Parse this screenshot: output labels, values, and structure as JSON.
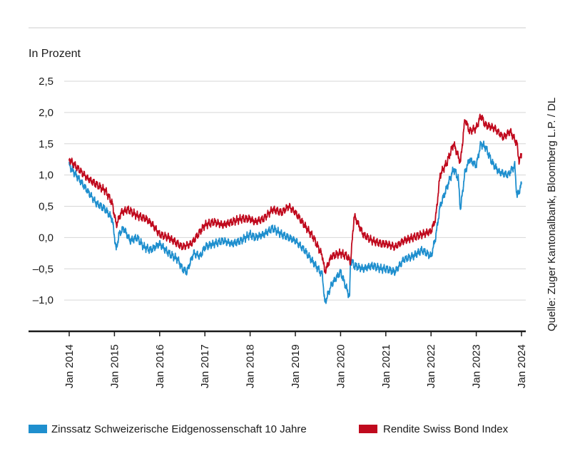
{
  "chart_data": {
    "type": "line",
    "ylabel": "In Prozent",
    "source": "Quelle: Zuger Kantonalbank, Bloomberg L.P. / DL",
    "ylim": [
      -1.5,
      2.5
    ],
    "yticks": [
      2.5,
      2.0,
      1.5,
      1.0,
      0.5,
      0.0,
      -0.5,
      -1.0
    ],
    "ytick_labels": [
      "2,5",
      "2,0",
      "1,5",
      "1,0",
      "0,5",
      "0,0",
      "–0,5",
      "–1,0"
    ],
    "xlim": [
      2014.0,
      2024.0
    ],
    "xticks": [
      2014,
      2015,
      2016,
      2017,
      2018,
      2019,
      2020,
      2021,
      2022,
      2023,
      2024
    ],
    "xtick_labels": [
      "Jan 2014",
      "Jan 2015",
      "Jan 2016",
      "Jan 2017",
      "Jan 2018",
      "Jan 2019",
      "Jan 2020",
      "Jan 2021",
      "Jan 2022",
      "Jan 2023",
      "Jan 2024"
    ],
    "grid": true,
    "legend_position": "bottom",
    "series": [
      {
        "name": "Zinssatz Schweizerische Eidgenossenschaft 10 Jahre",
        "color": "#1f8fce",
        "x": [
          2014.0,
          2014.2,
          2014.4,
          2014.6,
          2014.8,
          2014.95,
          2015.04,
          2015.1,
          2015.2,
          2015.35,
          2015.5,
          2015.65,
          2015.8,
          2016.0,
          2016.2,
          2016.4,
          2016.5,
          2016.6,
          2016.75,
          2016.9,
          2017.0,
          2017.2,
          2017.4,
          2017.6,
          2017.8,
          2018.0,
          2018.1,
          2018.3,
          2018.5,
          2018.7,
          2018.85,
          2019.0,
          2019.2,
          2019.4,
          2019.6,
          2019.65,
          2019.8,
          2020.0,
          2020.1,
          2020.2,
          2020.22,
          2020.3,
          2020.5,
          2020.7,
          2020.9,
          2021.0,
          2021.2,
          2021.4,
          2021.6,
          2021.8,
          2022.0,
          2022.1,
          2022.2,
          2022.35,
          2022.5,
          2022.6,
          2022.65,
          2022.75,
          2022.85,
          2023.0,
          2023.1,
          2023.2,
          2023.35,
          2023.5,
          2023.7,
          2023.85,
          2023.9,
          2024.0
        ],
        "y": [
          1.15,
          0.95,
          0.75,
          0.55,
          0.45,
          0.3,
          -0.2,
          0.05,
          0.15,
          -0.05,
          0.0,
          -0.15,
          -0.2,
          -0.1,
          -0.25,
          -0.35,
          -0.5,
          -0.55,
          -0.25,
          -0.3,
          -0.15,
          -0.1,
          -0.05,
          -0.1,
          -0.05,
          0.05,
          0.0,
          0.05,
          0.15,
          0.05,
          0.0,
          -0.05,
          -0.2,
          -0.4,
          -0.6,
          -1.05,
          -0.75,
          -0.55,
          -0.75,
          -0.95,
          -0.35,
          -0.45,
          -0.5,
          -0.45,
          -0.5,
          -0.5,
          -0.55,
          -0.35,
          -0.3,
          -0.2,
          -0.3,
          0.0,
          0.5,
          0.8,
          1.1,
          0.95,
          0.45,
          1.05,
          1.25,
          1.15,
          1.5,
          1.45,
          1.2,
          1.05,
          1.0,
          1.15,
          0.65,
          0.85
        ]
      },
      {
        "name": "Rendite Swiss Bond Index",
        "color": "#c00a1e",
        "x": [
          2014.0,
          2014.2,
          2014.4,
          2014.6,
          2014.8,
          2014.95,
          2015.04,
          2015.15,
          2015.3,
          2015.5,
          2015.7,
          2015.85,
          2016.0,
          2016.2,
          2016.4,
          2016.5,
          2016.7,
          2016.85,
          2017.0,
          2017.2,
          2017.4,
          2017.6,
          2017.8,
          2018.0,
          2018.1,
          2018.3,
          2018.5,
          2018.7,
          2018.85,
          2019.0,
          2019.2,
          2019.4,
          2019.6,
          2019.65,
          2019.8,
          2020.0,
          2020.15,
          2020.22,
          2020.3,
          2020.5,
          2020.7,
          2020.9,
          2021.0,
          2021.2,
          2021.4,
          2021.6,
          2021.8,
          2022.0,
          2022.1,
          2022.2,
          2022.35,
          2022.5,
          2022.6,
          2022.65,
          2022.75,
          2022.85,
          2023.0,
          2023.1,
          2023.2,
          2023.4,
          2023.6,
          2023.75,
          2023.9,
          2023.95,
          2024.0
        ],
        "y": [
          1.25,
          1.1,
          0.95,
          0.85,
          0.75,
          0.55,
          0.2,
          0.4,
          0.45,
          0.35,
          0.3,
          0.2,
          0.05,
          0.0,
          -0.1,
          -0.15,
          -0.1,
          0.05,
          0.2,
          0.25,
          0.2,
          0.25,
          0.3,
          0.3,
          0.25,
          0.3,
          0.45,
          0.4,
          0.5,
          0.4,
          0.2,
          0.0,
          -0.3,
          -0.55,
          -0.3,
          -0.25,
          -0.3,
          -0.4,
          0.35,
          0.05,
          -0.05,
          -0.1,
          -0.1,
          -0.15,
          -0.05,
          0.0,
          0.05,
          0.1,
          0.3,
          1.0,
          1.2,
          1.5,
          1.3,
          1.2,
          1.9,
          1.7,
          1.75,
          1.95,
          1.8,
          1.75,
          1.6,
          1.7,
          1.5,
          1.2,
          1.35
        ]
      }
    ]
  }
}
